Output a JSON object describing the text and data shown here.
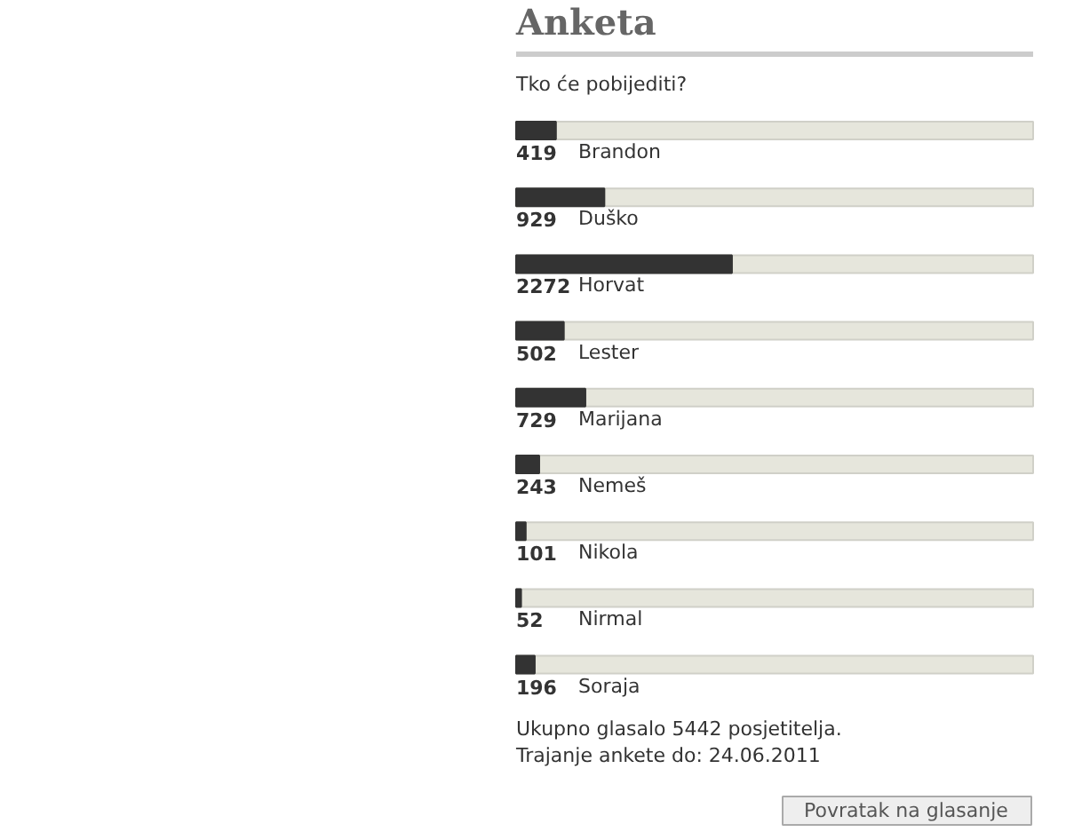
{
  "chart_data": {
    "type": "bar",
    "orientation": "horizontal",
    "title": "Anketa",
    "subtitle": "Tko će pobijediti?",
    "categories": [
      "Brandon",
      "Duško",
      "Horvat",
      "Lester",
      "Marijana",
      "Nemeš",
      "Nikola",
      "Nirmal",
      "Soraja"
    ],
    "values": [
      419,
      929,
      2272,
      502,
      729,
      243,
      101,
      52,
      196
    ],
    "color": "#333333",
    "data_labels": true,
    "grid": false,
    "annotations": [
      "Ukupno glasalo 5442 posjetitelja.",
      "Trajanje ankete do: 24.06.2011",
      "Povratak na glasanje"
    ]
  }
}
